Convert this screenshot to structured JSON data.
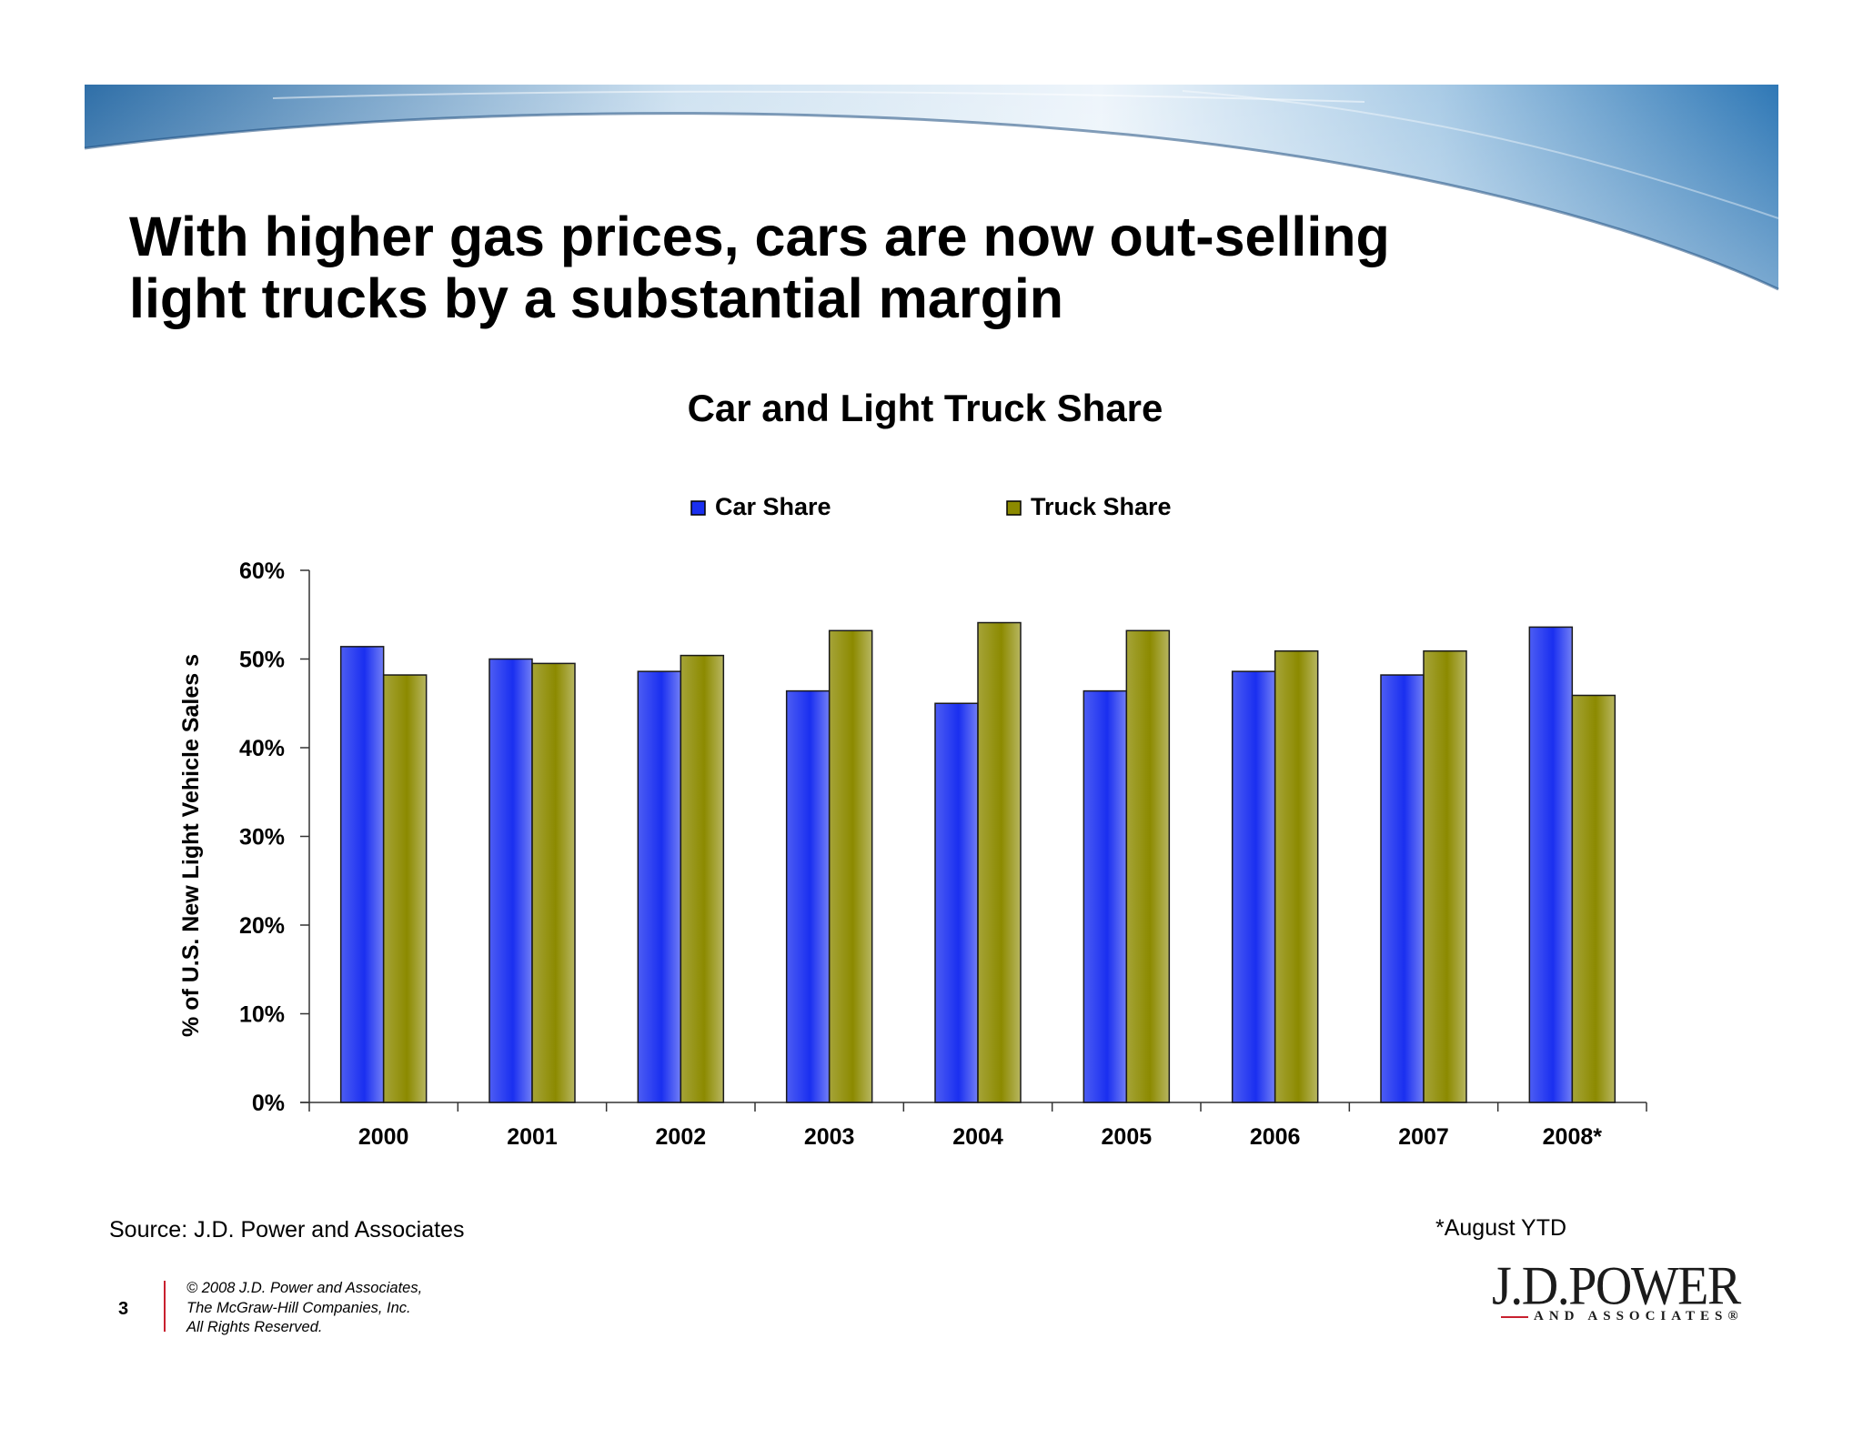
{
  "slide": {
    "title_lines": [
      "With higher gas prices, cars are now out-selling",
      "light trucks by a substantial margin"
    ],
    "source": "Source: J.D. Power and Associates",
    "footnote": "*August YTD",
    "page_number": "3",
    "copyright_lines": [
      "© 2008 J.D. Power and Associates,",
      "The McGraw-Hill Companies, Inc.",
      "All Rights Reserved."
    ],
    "logo": {
      "main": "J.D.POWER",
      "sub": "AND ASSOCIATES®"
    }
  },
  "colors": {
    "car": "#1a2ff0",
    "truck": "#8c8a00",
    "banner_light": "#e6f0f8",
    "banner_dark": "#3d7fb8"
  },
  "chart_data": {
    "type": "bar",
    "title": "Car and Light Truck Share",
    "xlabel": "",
    "ylabel": "% of U.S. New Light Vehicle Sales s",
    "categories": [
      "2000",
      "2001",
      "2002",
      "2003",
      "2004",
      "2005",
      "2006",
      "2007",
      "2008*"
    ],
    "series": [
      {
        "name": "Car Share",
        "values": [
          51.4,
          50.0,
          48.6,
          46.4,
          45.0,
          46.4,
          48.6,
          48.2,
          53.6
        ]
      },
      {
        "name": "Truck Share",
        "values": [
          48.2,
          49.5,
          50.4,
          53.2,
          54.1,
          53.2,
          50.9,
          50.9,
          45.9
        ]
      }
    ],
    "ylim": [
      0,
      60
    ],
    "yticks": [
      "0%",
      "10%",
      "20%",
      "30%",
      "40%",
      "50%",
      "60%"
    ],
    "ytick_values": [
      0,
      10,
      20,
      30,
      40,
      50,
      60
    ],
    "grid": false,
    "legend": "top"
  }
}
